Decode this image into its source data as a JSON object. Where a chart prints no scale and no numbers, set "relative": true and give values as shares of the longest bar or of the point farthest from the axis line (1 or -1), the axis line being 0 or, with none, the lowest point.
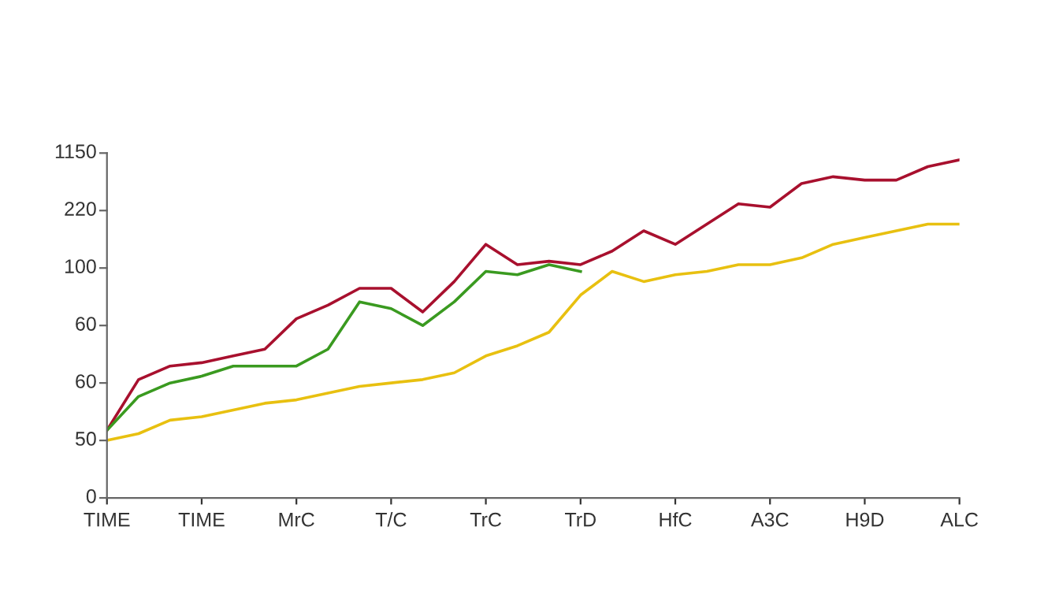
{
  "chart_data": {
    "type": "line",
    "relative": true,
    "categories": [
      "TIME",
      null,
      null,
      "TIME",
      null,
      null,
      "MrC",
      null,
      null,
      "T/C",
      null,
      null,
      "TrC",
      null,
      null,
      "TrD",
      null,
      null,
      "HfC",
      null,
      null,
      "A3C",
      null,
      null,
      "H9D",
      null,
      null,
      "ALC"
    ],
    "annotations": [
      "0",
      "50",
      "60",
      "60",
      "100",
      "220",
      "1150"
    ],
    "marker": "none",
    "line_style": "solid",
    "series": [
      {
        "color": "#a8102e",
        "values": [
          0.2,
          0.35,
          0.39,
          0.4,
          0.42,
          0.44,
          0.53,
          0.57,
          0.62,
          0.62,
          0.55,
          0.64,
          0.75,
          0.69,
          0.7,
          0.69,
          0.73,
          0.79,
          0.75,
          0.81,
          0.87,
          0.86,
          0.93,
          0.95,
          0.94,
          0.94,
          0.98,
          1
        ]
      },
      {
        "color": "#3a9a20",
        "values": [
          0.2,
          0.3,
          0.34,
          0.36,
          0.39,
          0.39,
          0.39,
          0.44,
          0.58,
          0.56,
          0.51,
          0.58,
          0.67,
          0.66,
          0.69,
          0.67,
          null,
          null,
          null,
          null,
          null,
          null,
          null,
          null,
          null,
          null,
          null,
          null
        ]
      },
      {
        "color": "#e8c010",
        "values": [
          0.17,
          0.19,
          0.23,
          0.24,
          0.26,
          0.28,
          0.29,
          0.31,
          0.33,
          0.34,
          0.35,
          0.37,
          0.42,
          0.45,
          0.49,
          0.6,
          0.67,
          0.64,
          0.66,
          0.67,
          0.69,
          0.69,
          0.71,
          0.75,
          0.77,
          0.79,
          0.81,
          0.81
        ]
      }
    ]
  }
}
